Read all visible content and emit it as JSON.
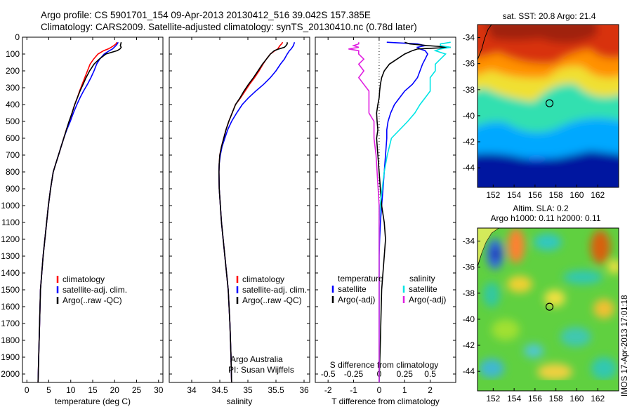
{
  "header": {
    "line1": "Argo profile: CS 5901701_154 09-Apr-2013 20130412_516 39.042S 157.385E",
    "line2": "Climatology: CARS2009. Satellite-adjusted climatology: synTS_20130410.nc (0.78d later)"
  },
  "footer": {
    "credit1": "Argo Australia",
    "credit2": "PI: Susan Wijffels",
    "stamp": "IMOS 17-Apr-2013 17:01:18"
  },
  "colors": {
    "climatology": "#ff0000",
    "satellite": "#0000ff",
    "argo": "#000000",
    "salinity_satellite": "#00e5e5",
    "salinity_argo": "#e020e0"
  },
  "chart_data": [
    {
      "id": "temperature",
      "type": "line",
      "xlabel": "temperature (deg C)",
      "ylabel": "",
      "xlim": [
        -1,
        31
      ],
      "ylim": [
        2050,
        0
      ],
      "xticks": [
        0,
        5,
        10,
        15,
        20,
        25,
        30
      ],
      "yticks": [
        0,
        100,
        200,
        300,
        400,
        500,
        600,
        700,
        800,
        900,
        1000,
        1100,
        1200,
        1300,
        1400,
        1500,
        1600,
        1700,
        1800,
        1900,
        2000
      ],
      "legend": [
        "climatology",
        "satellite-adj. clim.",
        "Argo(..raw -QC)"
      ],
      "series": [
        {
          "name": "climatology",
          "color": "#ff0000",
          "x": [
            20.5,
            20.3,
            19.8,
            19.2,
            18.5,
            17.5,
            16.2,
            15.2,
            14.4,
            13.8,
            13.2,
            12.6,
            12.0,
            11.5,
            10.9,
            10.3,
            9.7,
            9.0,
            8.4,
            7.8,
            7.2,
            6.6,
            6.0,
            5.4,
            4.9,
            4.5,
            4.1,
            3.7,
            3.4,
            3.1,
            2.9,
            2.7,
            2.55
          ],
          "y": [
            30,
            40,
            50,
            60,
            70,
            80,
            100,
            130,
            160,
            200,
            240,
            280,
            320,
            360,
            400,
            450,
            500,
            550,
            600,
            650,
            700,
            750,
            800,
            900,
            1000,
            1100,
            1200,
            1300,
            1400,
            1500,
            1700,
            1900,
            2050
          ]
        },
        {
          "name": "satellite-adj. clim.",
          "color": "#0000ff",
          "x": [
            20.8,
            20.6,
            20.3,
            19.9,
            19.5,
            18.8,
            17.6,
            16.6,
            15.9,
            15.3,
            14.6,
            13.8,
            12.9,
            12.1,
            11.4,
            10.6,
            9.9,
            9.1,
            8.4,
            7.8,
            7.2,
            6.6,
            6.0,
            5.4,
            4.9,
            4.5,
            4.1,
            3.7,
            3.4,
            3.1,
            2.9,
            2.7,
            2.55
          ],
          "y": [
            30,
            40,
            50,
            60,
            70,
            80,
            100,
            130,
            160,
            200,
            240,
            280,
            320,
            360,
            400,
            450,
            500,
            550,
            600,
            650,
            700,
            750,
            800,
            900,
            1000,
            1100,
            1200,
            1300,
            1400,
            1500,
            1700,
            1900,
            2050
          ]
        },
        {
          "name": "Argo(..raw -QC)",
          "color": "#000000",
          "x": [
            21.5,
            21.4,
            21.3,
            21.5,
            21.2,
            20.6,
            18.0,
            16.5,
            15.3,
            14.3,
            13.5,
            12.8,
            12.1,
            11.5,
            10.9,
            10.3,
            9.6,
            9.0,
            8.4,
            7.8,
            7.2,
            6.6,
            6.0,
            5.4,
            4.9,
            4.5,
            4.1,
            3.7,
            3.4,
            3.1,
            2.9,
            2.7,
            2.55
          ],
          "y": [
            30,
            40,
            50,
            60,
            70,
            80,
            100,
            130,
            160,
            200,
            240,
            280,
            320,
            360,
            400,
            450,
            500,
            550,
            600,
            650,
            700,
            750,
            800,
            900,
            1000,
            1100,
            1200,
            1300,
            1400,
            1500,
            1700,
            1900,
            2050
          ]
        }
      ]
    },
    {
      "id": "salinity",
      "type": "line",
      "xlabel": "salinity",
      "xlim": [
        33.6,
        36.1
      ],
      "ylim": [
        2050,
        0
      ],
      "xticks": [
        34,
        34.5,
        35,
        35.5,
        36
      ],
      "legend": [
        "climatology",
        "satellite-adj. clim.",
        "Argo(..raw -QC)"
      ],
      "series": [
        {
          "name": "climatology",
          "color": "#ff0000",
          "x": [
            35.62,
            35.6,
            35.57,
            35.55,
            35.53,
            35.48,
            35.4,
            35.33,
            35.27,
            35.2,
            35.12,
            35.03,
            34.95,
            34.87,
            34.78,
            34.72,
            34.66,
            34.61,
            34.57,
            34.53,
            34.5,
            34.49,
            34.485,
            34.49,
            34.51,
            34.53,
            34.56,
            34.59,
            34.62,
            34.65,
            34.68,
            34.7,
            34.71
          ],
          "y": [
            30,
            40,
            50,
            60,
            70,
            80,
            100,
            130,
            160,
            200,
            240,
            280,
            320,
            360,
            400,
            450,
            500,
            550,
            600,
            650,
            700,
            750,
            800,
            900,
            1000,
            1100,
            1200,
            1300,
            1400,
            1500,
            1700,
            1900,
            2050
          ]
        },
        {
          "name": "satellite-adj. clim.",
          "color": "#0000ff",
          "x": [
            35.83,
            35.82,
            35.81,
            35.79,
            35.77,
            35.74,
            35.7,
            35.65,
            35.58,
            35.5,
            35.4,
            35.28,
            35.14,
            35.01,
            34.9,
            34.8,
            34.71,
            34.64,
            34.59,
            34.54,
            34.51,
            34.49,
            34.485,
            34.49,
            34.51,
            34.53,
            34.56,
            34.59,
            34.62,
            34.65,
            34.68,
            34.7,
            34.71
          ],
          "y": [
            30,
            40,
            50,
            60,
            70,
            80,
            100,
            130,
            160,
            200,
            240,
            280,
            320,
            360,
            400,
            450,
            500,
            550,
            600,
            650,
            700,
            750,
            800,
            900,
            1000,
            1100,
            1200,
            1300,
            1400,
            1500,
            1700,
            1900,
            2050
          ]
        },
        {
          "name": "Argo(..raw -QC)",
          "color": "#000000",
          "x": [
            35.7,
            35.7,
            35.68,
            35.65,
            35.55,
            35.47,
            35.4,
            35.33,
            35.26,
            35.18,
            35.1,
            35.01,
            34.93,
            34.86,
            34.78,
            34.72,
            34.66,
            34.61,
            34.57,
            34.53,
            34.5,
            34.49,
            34.485,
            34.49,
            34.51,
            34.53,
            34.56,
            34.59,
            34.62,
            34.65,
            34.68,
            34.7,
            34.71
          ],
          "y": [
            30,
            40,
            50,
            60,
            70,
            80,
            100,
            130,
            160,
            200,
            240,
            280,
            320,
            360,
            400,
            450,
            500,
            550,
            600,
            650,
            700,
            750,
            800,
            900,
            1000,
            1100,
            1200,
            1300,
            1400,
            1500,
            1700,
            1900,
            2050
          ]
        }
      ]
    },
    {
      "id": "difference",
      "type": "line",
      "xlabel": "T difference from climatology",
      "xlabel_top": "S difference from climatology",
      "xlim": [
        -2.5,
        3.0
      ],
      "ylim": [
        2050,
        0
      ],
      "xticks": [
        -2,
        -1,
        0,
        1,
        2
      ],
      "xticks_top": [
        -0.5,
        -0.25,
        0,
        0.25,
        0.5
      ],
      "legend_temperature": {
        "heading": "temperature",
        "items": [
          "satellite",
          "Argo(-adj)"
        ]
      },
      "legend_salinity": {
        "heading": "salinity",
        "items": [
          "satellite",
          "Argo(-adj)"
        ]
      },
      "series": [
        {
          "name": "temperature satellite",
          "color": "#0000ff",
          "x": [
            0.3,
            1.5,
            1.8,
            1.5,
            1.6,
            1.8,
            1.9,
            1.8,
            1.7,
            1.6,
            1.5,
            1.3,
            1.0,
            0.8,
            0.6,
            0.45,
            0.35,
            0.3,
            0.3,
            0.25,
            0.2,
            0.15,
            0.1,
            0.05,
            0.02,
            0,
            0,
            0,
            0
          ],
          "y": [
            30,
            40,
            50,
            60,
            70,
            80,
            100,
            130,
            160,
            200,
            240,
            280,
            320,
            360,
            400,
            450,
            500,
            550,
            600,
            700,
            800,
            900,
            1000,
            1100,
            1200,
            1300,
            1500,
            1800,
            2050
          ]
        },
        {
          "name": "temperature Argo(-adj)",
          "color": "#000000",
          "x": [
            1.0,
            1.2,
            1.9,
            2.8,
            1.5,
            1.3,
            1.0,
            0.7,
            0.4,
            0.2,
            0.1,
            0.05,
            0.02,
            0,
            -0.05,
            -0.1,
            -0.08,
            -0.05,
            -0.1,
            -0.05,
            0,
            0.05,
            0.1,
            0.2,
            0.25,
            0.2,
            0.1,
            0.05,
            0
          ],
          "y": [
            30,
            40,
            50,
            60,
            70,
            80,
            100,
            130,
            160,
            200,
            240,
            280,
            320,
            360,
            400,
            450,
            500,
            550,
            600,
            700,
            800,
            900,
            1000,
            1100,
            1200,
            1300,
            1500,
            1800,
            2050
          ]
        },
        {
          "name": "salinity satellite",
          "color": "#00e5e5",
          "x": [
            0.7,
            0.6,
            0.6,
            0.7,
            0.6,
            0.55,
            0.65,
            0.6,
            0.55,
            0.55,
            0.5,
            0.5,
            0.5,
            0.45,
            0.4,
            0.35,
            0.28,
            0.2,
            0.12,
            0.08,
            0.05,
            0.03,
            0.01,
            0,
            0,
            0,
            0,
            0,
            0
          ],
          "y": [
            30,
            40,
            50,
            60,
            70,
            80,
            100,
            130,
            160,
            200,
            240,
            280,
            320,
            360,
            400,
            450,
            500,
            550,
            600,
            700,
            800,
            900,
            1000,
            1100,
            1200,
            1300,
            1500,
            1800,
            2050
          ]
        },
        {
          "name": "salinity Argo(-adj)",
          "color": "#e020e0",
          "x": [
            -0.2,
            -0.2,
            -0.25,
            -0.2,
            -0.3,
            -0.2,
            -0.2,
            -0.15,
            -0.2,
            -0.15,
            -0.2,
            -0.15,
            -0.1,
            -0.1,
            -0.1,
            -0.1,
            -0.05,
            -0.05,
            -0.05,
            -0.03,
            -0.02,
            -0.01,
            0,
            0,
            0,
            0,
            0,
            0,
            0
          ],
          "y": [
            30,
            40,
            50,
            60,
            70,
            80,
            100,
            130,
            160,
            200,
            240,
            280,
            320,
            360,
            400,
            450,
            500,
            550,
            600,
            700,
            800,
            900,
            1000,
            1100,
            1200,
            1300,
            1500,
            1800,
            2050
          ]
        }
      ]
    },
    {
      "id": "sst-map",
      "type": "heatmap",
      "title": "sat. SST: 20.8 Argo: 21.4",
      "xticks": [
        152,
        154,
        156,
        158,
        160,
        162
      ],
      "yticks": [
        -34,
        -36,
        -38,
        -40,
        -42,
        -44
      ],
      "xlim": [
        150.5,
        164
      ],
      "ylim": [
        -45.5,
        -33
      ],
      "marker": {
        "lon": 157.385,
        "lat": -39.042
      }
    },
    {
      "id": "sla-map",
      "type": "heatmap",
      "title": "Altim. SLA: 0.2",
      "subtitle": "Argo h1000: 0.11 h2000: 0.11",
      "xticks": [
        152,
        154,
        156,
        158,
        160,
        162
      ],
      "yticks": [
        -34,
        -36,
        -38,
        -40,
        -42,
        -44
      ],
      "xlim": [
        150.5,
        164
      ],
      "ylim": [
        -45.5,
        -33
      ],
      "marker": {
        "lon": 157.385,
        "lat": -39.042
      }
    }
  ]
}
